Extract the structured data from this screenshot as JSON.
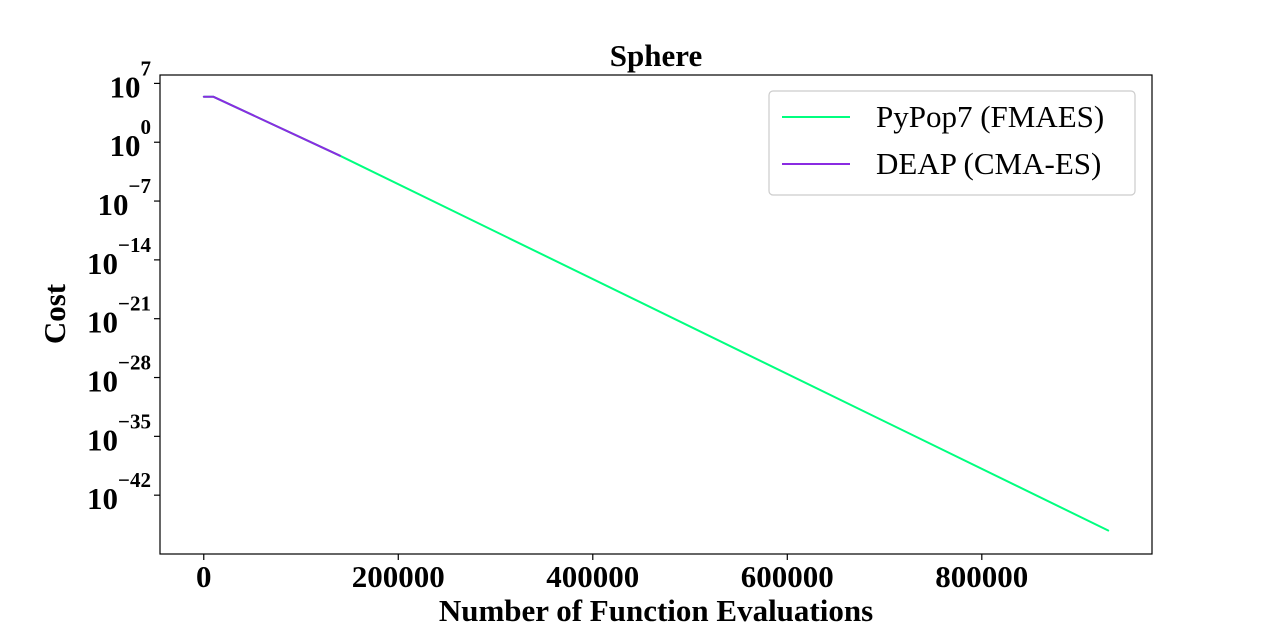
{
  "chart_data": {
    "type": "line",
    "title": "Sphere",
    "xlabel": "Number of Function Evaluations",
    "ylabel": "Cost",
    "xlim": [
      -45000,
      975000
    ],
    "ylim_log10": [
      -49,
      8
    ],
    "y_scale": "log",
    "x_ticks": [
      {
        "value": 0,
        "label": "0"
      },
      {
        "value": 200000,
        "label": "200000"
      },
      {
        "value": 400000,
        "label": "400000"
      },
      {
        "value": 600000,
        "label": "600000"
      },
      {
        "value": 800000,
        "label": "800000"
      }
    ],
    "y_ticks": [
      {
        "exp": 7,
        "base": "10",
        "sup": "7"
      },
      {
        "exp": 0,
        "base": "10",
        "sup": "0"
      },
      {
        "exp": -7,
        "base": "10",
        "sup": "−7"
      },
      {
        "exp": -14,
        "base": "10",
        "sup": "−14"
      },
      {
        "exp": -21,
        "base": "10",
        "sup": "−21"
      },
      {
        "exp": -28,
        "base": "10",
        "sup": "−28"
      },
      {
        "exp": -35,
        "base": "10",
        "sup": "−35"
      },
      {
        "exp": -42,
        "base": "10",
        "sup": "−42"
      }
    ],
    "legend_position": "top-right",
    "series": [
      {
        "name": "PyPop7 (FMAES)",
        "color": "#00ff7f",
        "x": [
          0,
          10000,
          140000,
          930000
        ],
        "log10_y": [
          5.4,
          5.4,
          -1.6,
          -46.2
        ]
      },
      {
        "name": "DEAP (CMA-ES)",
        "color": "#8a2be2",
        "x": [
          0,
          10000,
          140000
        ],
        "log10_y": [
          5.4,
          5.4,
          -1.6
        ]
      }
    ]
  }
}
